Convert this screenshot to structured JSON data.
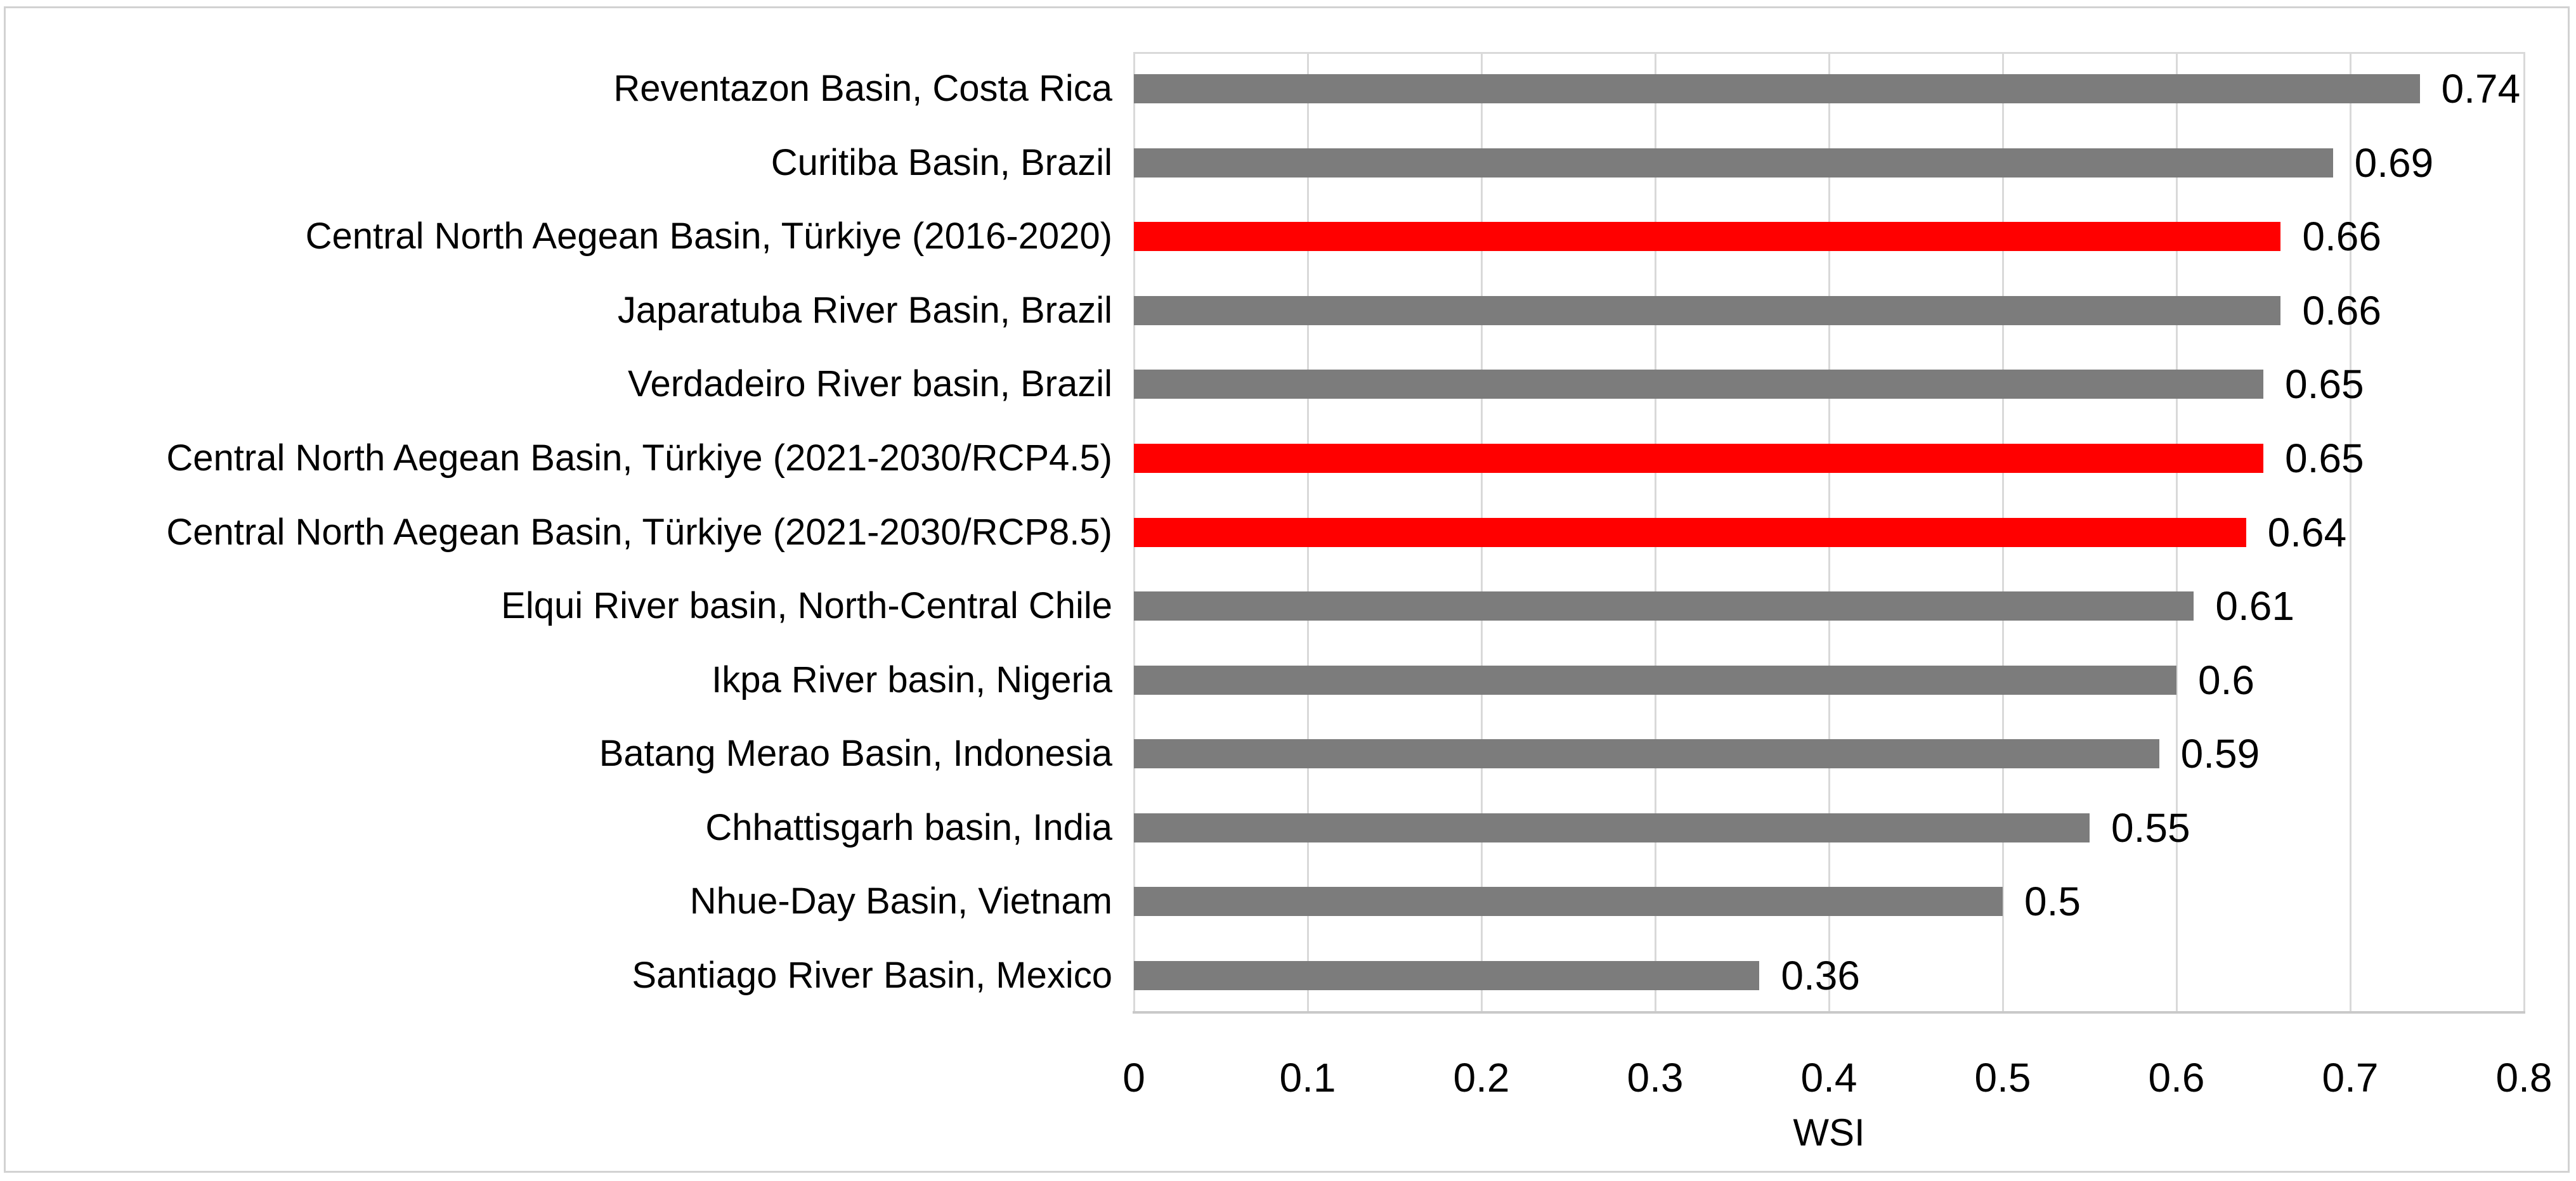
{
  "chart_data": {
    "type": "bar",
    "orientation": "horizontal",
    "title": "",
    "xlabel": "WSI",
    "ylabel": "",
    "xlim": [
      0,
      0.8
    ],
    "x_ticks": [
      "0",
      "0.1",
      "0.2",
      "0.3",
      "0.4",
      "0.5",
      "0.6",
      "0.7",
      "0.8"
    ],
    "grid": "vertical-gridlines-on",
    "legend": "none",
    "categories": [
      "Reventazon Basin, Costa Rica",
      "Curitiba Basin, Brazil",
      "Central North Aegean Basin, Türkiye (2016-2020)",
      "Japaratuba River Basin, Brazil",
      "Verdadeiro River basin, Brazil",
      "Central North Aegean Basin, Türkiye (2021-2030/RCP4.5)",
      "Central North Aegean Basin, Türkiye (2021-2030/RCP8.5)",
      "Elqui River basin, North-Central Chile",
      "Ikpa River basin, Nigeria",
      "Batang Merao Basin, Indonesia",
      "Chhattisgarh basin, India",
      "Nhue-Day Basin, Vietnam",
      "Santiago River Basin, Mexico"
    ],
    "values": [
      0.74,
      0.69,
      0.66,
      0.66,
      0.65,
      0.65,
      0.64,
      0.61,
      0.6,
      0.59,
      0.55,
      0.5,
      0.36
    ],
    "value_labels": [
      "0.74",
      "0.69",
      "0.66",
      "0.66",
      "0.65",
      "0.65",
      "0.64",
      "0.61",
      "0.6",
      "0.59",
      "0.55",
      "0.5",
      "0.36"
    ],
    "highlight_indices": [
      2,
      5,
      6
    ],
    "colors": {
      "bar_default": "#7c7c7c",
      "bar_highlight": "#ff0000",
      "gridline": "#d9d9d9",
      "axis_line": "#c9c9c9",
      "frame_border": "#d2d2d2",
      "text": "#000000",
      "background": "#ffffff"
    }
  }
}
